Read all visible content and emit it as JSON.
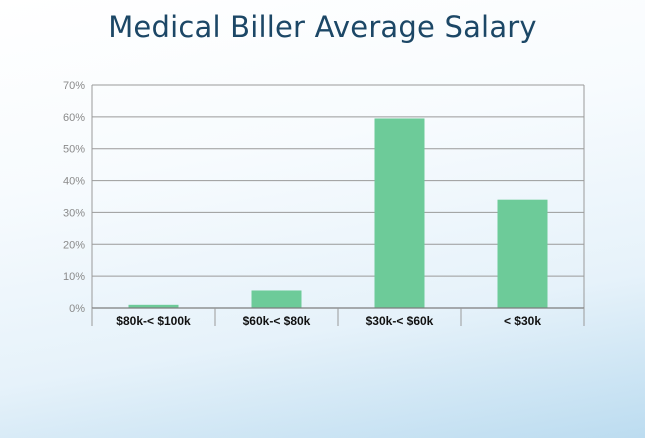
{
  "slide": {
    "title": "Medical Biller Average Salary"
  },
  "colors": {
    "bar": "#6dcb99",
    "title": "#1c4766",
    "grid": "#9a9a9a"
  },
  "chart_data": {
    "type": "bar",
    "title": "Medical Biller Average Salary",
    "xlabel": "",
    "ylabel": "",
    "categories": [
      "$80k-< $100k",
      "$60k-< $80k",
      "$30k-< $60k",
      "< $30k"
    ],
    "values": [
      1,
      5.5,
      59.5,
      34
    ],
    "ylim": [
      0,
      70
    ],
    "yticks": [
      "0%",
      "10%",
      "20%",
      "30%",
      "40%",
      "50%",
      "60%",
      "70%"
    ],
    "grid": true,
    "legend": "none"
  }
}
